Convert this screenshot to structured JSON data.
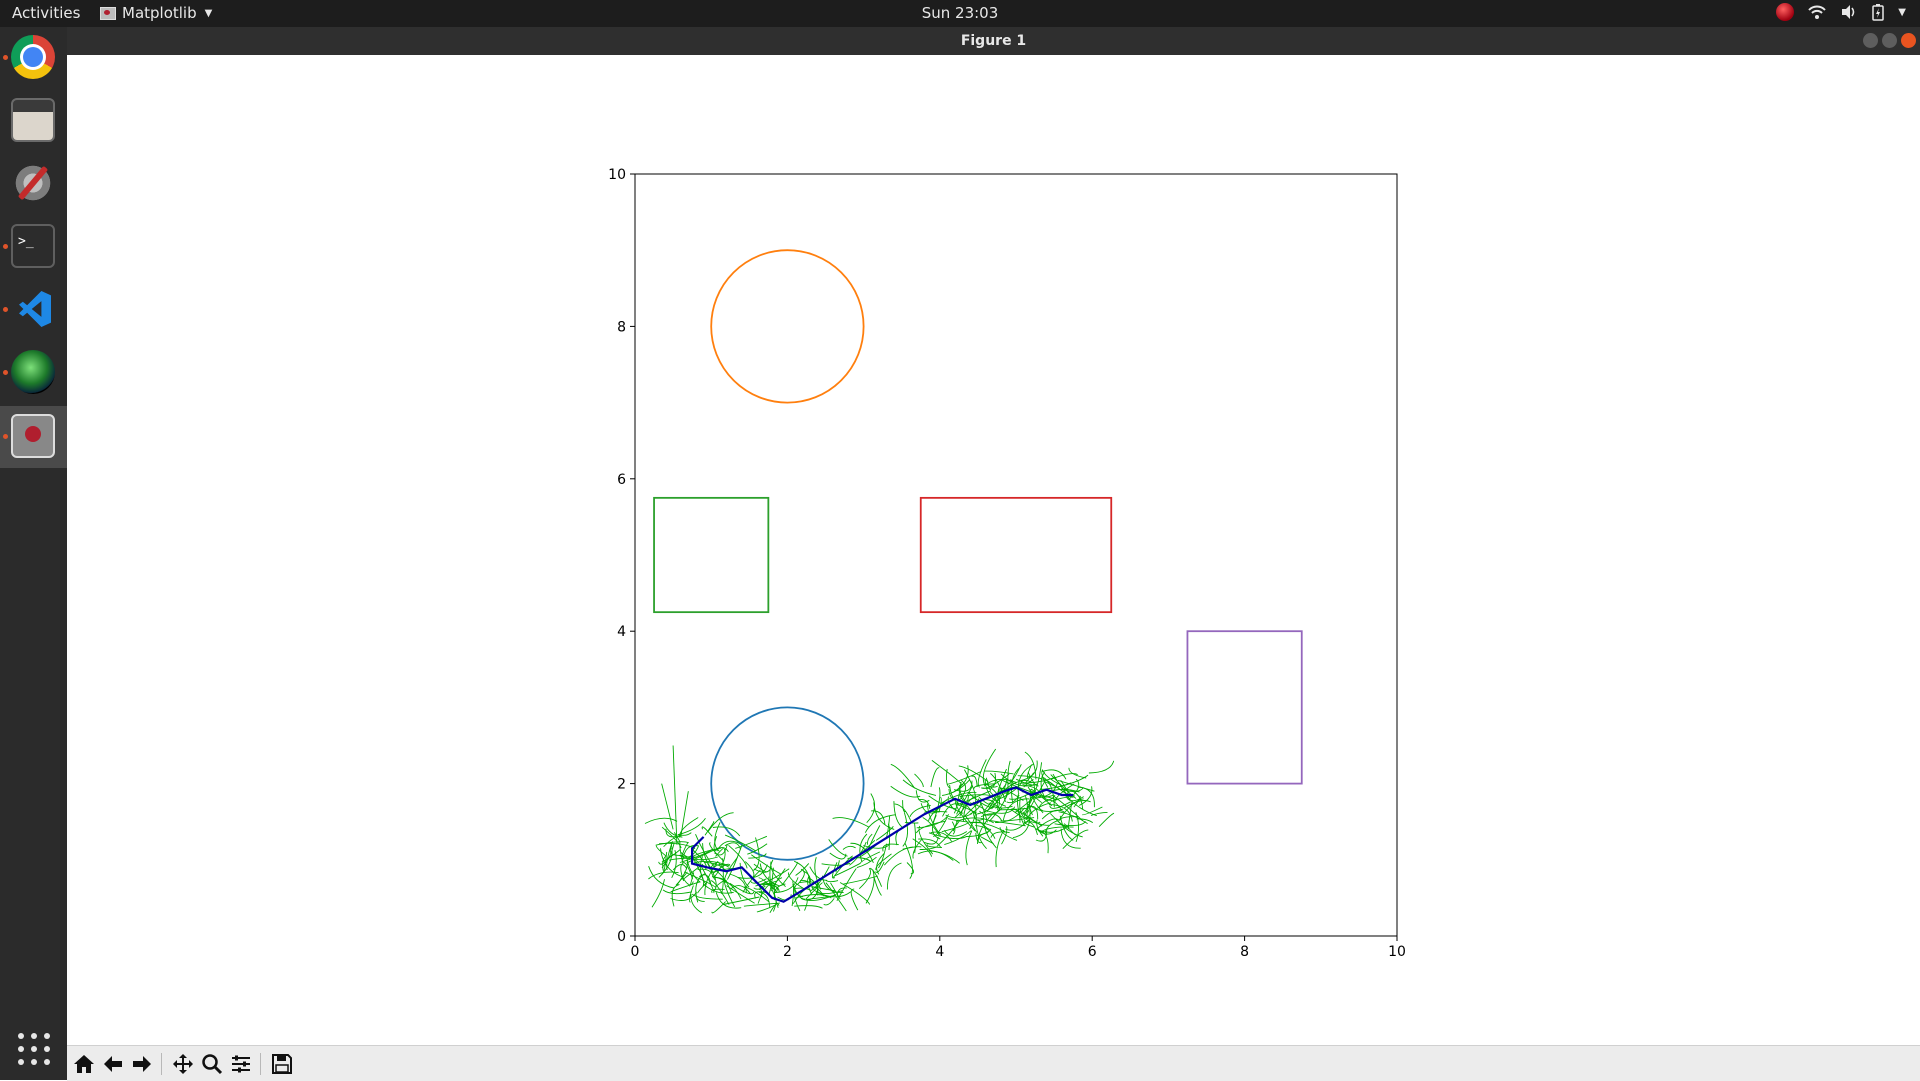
{
  "topbar": {
    "activities": "Activities",
    "app_menu_label": "Matplotlib",
    "clock": "Sun 23:03",
    "tray_icons": [
      "record-indicator-icon",
      "wifi-icon",
      "volume-icon",
      "battery-icon",
      "system-menu-caret-icon"
    ]
  },
  "dock": {
    "items": [
      {
        "icon": "chrome-icon",
        "running": true
      },
      {
        "icon": "files-icon",
        "running": false
      },
      {
        "icon": "settings-icon",
        "running": false
      },
      {
        "icon": "terminal-icon",
        "running": true
      },
      {
        "icon": "vscode-icon",
        "running": true
      },
      {
        "icon": "globe-app-icon",
        "running": true
      },
      {
        "icon": "figure-app-icon",
        "running": true,
        "active": true
      }
    ],
    "apps_grid_icon": "show-applications-icon"
  },
  "window": {
    "title": "Figure 1",
    "controls": [
      "minimize-icon",
      "maximize-icon",
      "close-icon"
    ]
  },
  "toolbar": {
    "buttons": [
      "home-icon",
      "back-icon",
      "forward-icon",
      "pan-icon",
      "zoom-icon",
      "configure-subplots-icon",
      "save-icon"
    ]
  },
  "chart_data": {
    "type": "scatter",
    "title": "",
    "xlabel": "",
    "ylabel": "",
    "xlim": [
      0,
      10
    ],
    "ylim": [
      0,
      10
    ],
    "xticks": [
      0,
      2,
      4,
      6,
      8,
      10
    ],
    "yticks": [
      0,
      2,
      4,
      6,
      8,
      10
    ],
    "grid": false,
    "obstacles": [
      {
        "shape": "circle",
        "center": [
          2,
          8
        ],
        "radius": 1,
        "color": "#ff7f0e"
      },
      {
        "shape": "rectangle",
        "x": 0.25,
        "y": 4.25,
        "width": 1.5,
        "height": 1.5,
        "color": "#2ca02c"
      },
      {
        "shape": "rectangle",
        "x": 3.75,
        "y": 4.25,
        "width": 2.5,
        "height": 1.5,
        "color": "#d62728"
      },
      {
        "shape": "rectangle",
        "x": 7.25,
        "y": 2,
        "width": 1.5,
        "height": 2,
        "color": "#9467bd"
      },
      {
        "shape": "circle",
        "center": [
          2,
          2
        ],
        "radius": 1,
        "color": "#1f77b4"
      }
    ],
    "tree_color": "#00aa00",
    "path_color": "#0000aa",
    "path": [
      [
        0.9,
        1.3
      ],
      [
        0.75,
        1.15
      ],
      [
        0.75,
        0.95
      ],
      [
        0.95,
        0.9
      ],
      [
        1.2,
        0.85
      ],
      [
        1.4,
        0.9
      ],
      [
        1.6,
        0.7
      ],
      [
        1.8,
        0.5
      ],
      [
        1.95,
        0.45
      ],
      [
        2.2,
        0.6
      ],
      [
        2.6,
        0.85
      ],
      [
        3.0,
        1.1
      ],
      [
        3.4,
        1.35
      ],
      [
        3.8,
        1.6
      ],
      [
        4.2,
        1.8
      ],
      [
        4.4,
        1.72
      ],
      [
        4.6,
        1.8
      ],
      [
        4.85,
        1.9
      ],
      [
        5.0,
        1.95
      ],
      [
        5.2,
        1.85
      ],
      [
        5.4,
        1.92
      ],
      [
        5.6,
        1.85
      ],
      [
        5.75,
        1.85
      ]
    ]
  }
}
